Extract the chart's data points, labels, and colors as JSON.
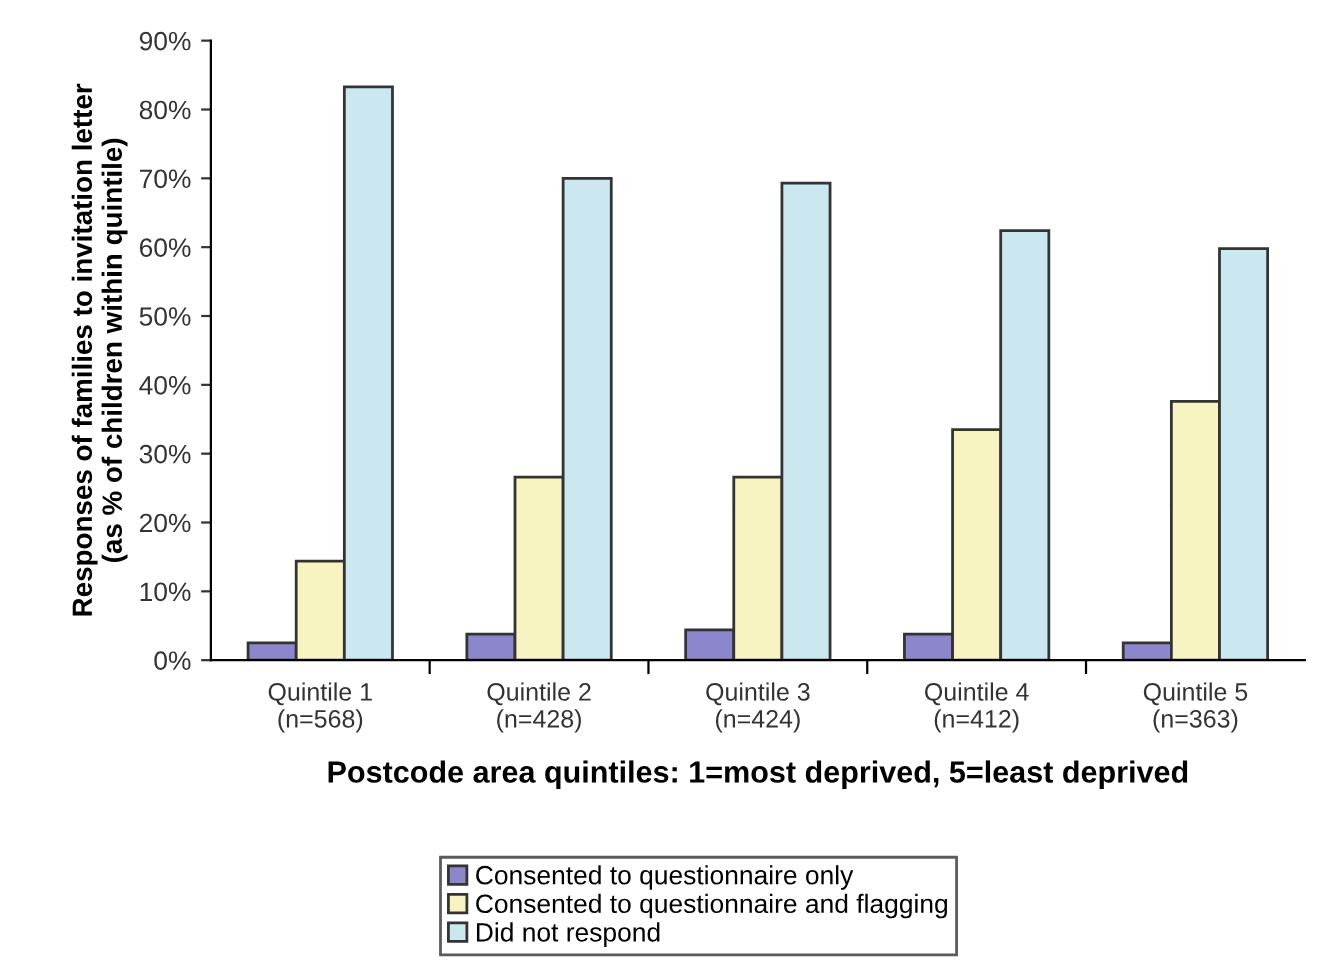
{
  "chart_data": {
    "type": "bar",
    "xlabel": "Postcode area quintiles: 1=most deprived, 5=least deprived",
    "ylabel": "Responses of families to invitation letter\n(as % of children within quintile)",
    "categories": [
      "Quintile 1\n(n=568)",
      "Quintile 2\n(n=428)",
      "Quintile 3\n(n=424)",
      "Quintile 4\n(n=412)",
      "Quintile 5\n(n=363)"
    ],
    "series": [
      {
        "name": "Consented to questionnaire only",
        "color": "#8c86cc",
        "values": [
          2.5,
          3.8,
          4.4,
          3.8,
          2.5
        ]
      },
      {
        "name": "Consented to questionnaire and flagging",
        "color": "#f7f4c2",
        "values": [
          14.4,
          26.6,
          26.6,
          33.5,
          37.6
        ]
      },
      {
        "name": "Did not respond",
        "color": "#cbe8f0",
        "values": [
          83.3,
          70.0,
          69.3,
          62.4,
          59.8
        ]
      }
    ],
    "ylim": [
      0,
      90
    ],
    "yticks": [
      {
        "value": 0,
        "label": "0%"
      },
      {
        "value": 10,
        "label": "10%"
      },
      {
        "value": 20,
        "label": "20%"
      },
      {
        "value": 30,
        "label": "30%"
      },
      {
        "value": 40,
        "label": "40%"
      },
      {
        "value": 50,
        "label": "50%"
      },
      {
        "value": 60,
        "label": "60%"
      },
      {
        "value": 70,
        "label": "70%"
      },
      {
        "value": 80,
        "label": "80%"
      },
      {
        "value": 90,
        "label": "90%"
      }
    ],
    "grid": false,
    "legend": "bottom"
  }
}
